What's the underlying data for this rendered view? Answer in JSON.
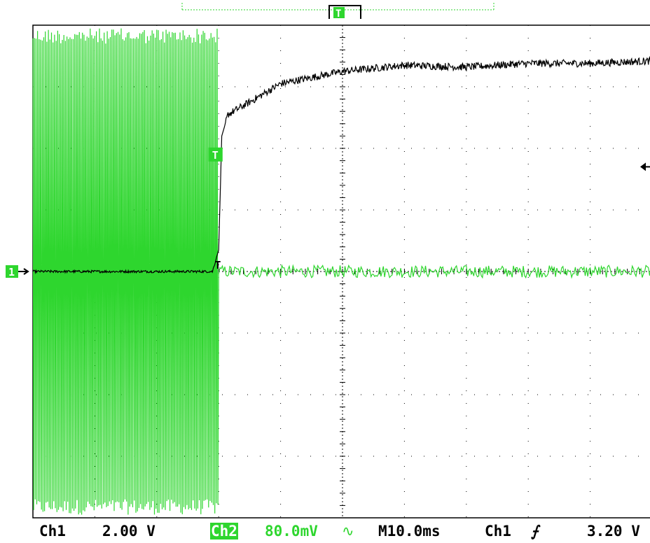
{
  "chart_data": {
    "type": "line",
    "title": "",
    "xlabel": "",
    "ylabel": "",
    "grid": true,
    "divisions": {
      "x": 10,
      "y": 8
    },
    "xlim_div": [
      0,
      10
    ],
    "ylim_div": [
      -4,
      4
    ],
    "series": [
      {
        "name": "Ch1",
        "color": "#000000",
        "scale": "2.00 V",
        "description": "step response: flat at 0 div until ~3.0 div, rises sharply, then settles near +3.4 div with noise",
        "points_div": [
          {
            "x": 0.0,
            "y": 0.0
          },
          {
            "x": 2.9,
            "y": 0.0
          },
          {
            "x": 3.0,
            "y": 0.35
          },
          {
            "x": 3.05,
            "y": 2.2
          },
          {
            "x": 3.15,
            "y": 2.55
          },
          {
            "x": 3.5,
            "y": 2.75
          },
          {
            "x": 4.0,
            "y": 3.05
          },
          {
            "x": 5.0,
            "y": 3.25
          },
          {
            "x": 6.0,
            "y": 3.35
          },
          {
            "x": 7.0,
            "y": 3.32
          },
          {
            "x": 8.0,
            "y": 3.38
          },
          {
            "x": 9.0,
            "y": 3.38
          },
          {
            "x": 10.0,
            "y": 3.42
          }
        ]
      },
      {
        "name": "Ch2",
        "color": "#2ed62e",
        "scale": "80.0mV",
        "description": "dense oscillation spanning about +4 to -4 div until ~3.0 div, then small noise around 0 div",
        "burst_end_div": 3.0,
        "burst_amplitude_div": 3.95,
        "noise_amplitude_div": 0.1
      }
    ],
    "trigger": {
      "source": "Ch1",
      "slope": "rising",
      "level": "3.20 V"
    },
    "markers": {
      "ch1_ground_marker": "1",
      "trigger_marker": "T",
      "trigger_position_marker": "T"
    }
  },
  "status": {
    "ch1_label": "Ch1",
    "ch1_scale": "2.00 V",
    "ch2_label": "Ch2",
    "ch2_scale": "80.0mV",
    "ch2_bw_symbol": "∿",
    "timebase": "M10.0ms",
    "trigger_source": "Ch1",
    "trigger_slope_symbol": "⨍",
    "trigger_level": "3.20 V"
  },
  "colors": {
    "ch1": "#000000",
    "ch2": "#2ed62e",
    "background": "#ffffff",
    "grid": "#000000"
  }
}
